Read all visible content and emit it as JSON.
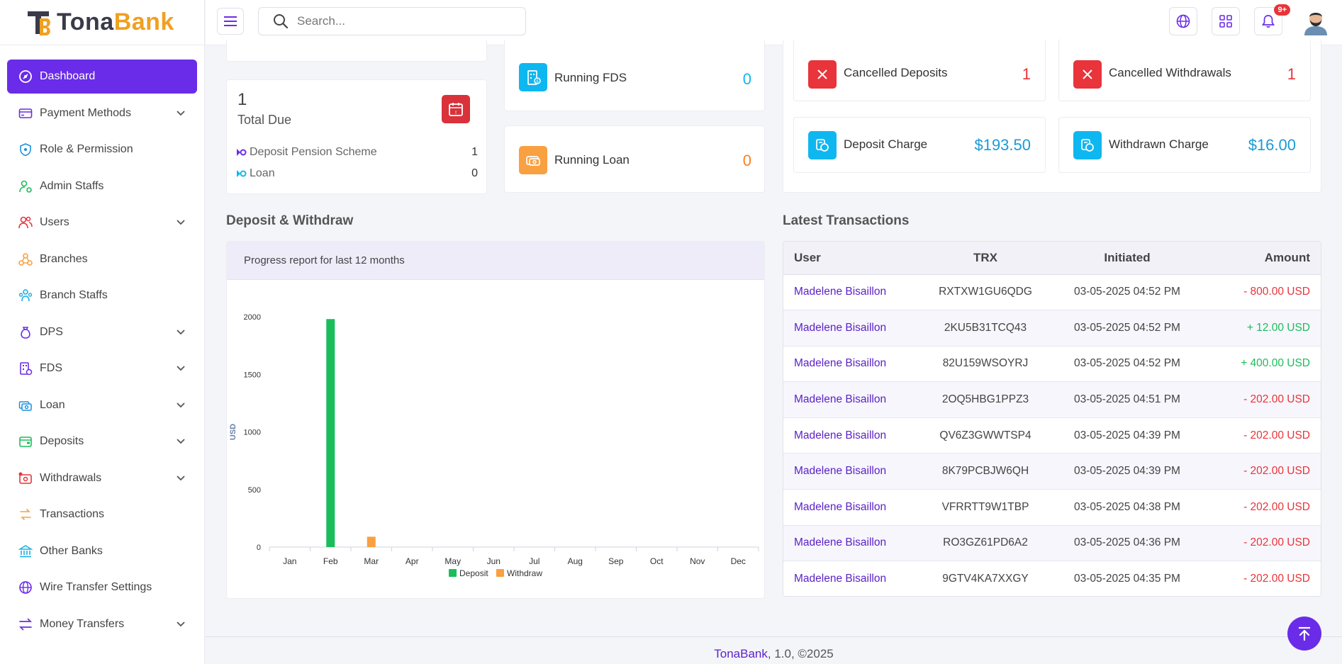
{
  "brand": {
    "name_part1": "Tona",
    "name_part2": "Bank"
  },
  "colors": {
    "primary": "#6a2ce8",
    "danger": "#e8343a",
    "info": "#0fb7f0",
    "warning": "#f9a040",
    "success": "#1bbd5b"
  },
  "search": {
    "placeholder": "Search..."
  },
  "notifications": {
    "count": "9+"
  },
  "sidebar": {
    "items": [
      {
        "label": "Dashboard",
        "icon": "dashboard-icon",
        "chevron": false
      },
      {
        "label": "Payment Methods",
        "icon": "credit-card-icon",
        "chevron": true
      },
      {
        "label": "Role & Permission",
        "icon": "shield-icon",
        "chevron": false
      },
      {
        "label": "Admin Staffs",
        "icon": "user-gear-icon",
        "chevron": false
      },
      {
        "label": "Users",
        "icon": "users-icon",
        "chevron": true
      },
      {
        "label": "Branches",
        "icon": "branches-icon",
        "chevron": false
      },
      {
        "label": "Branch Staffs",
        "icon": "staff-icon",
        "chevron": false
      },
      {
        "label": "DPS",
        "icon": "money-bag-icon",
        "chevron": true
      },
      {
        "label": "FDS",
        "icon": "building-icon",
        "chevron": true
      },
      {
        "label": "Loan",
        "icon": "loan-icon",
        "chevron": true
      },
      {
        "label": "Deposits",
        "icon": "deposit-icon",
        "chevron": true
      },
      {
        "label": "Withdrawals",
        "icon": "withdraw-icon",
        "chevron": true
      },
      {
        "label": "Transactions",
        "icon": "exchange-icon",
        "chevron": false
      },
      {
        "label": "Other Banks",
        "icon": "bank-icon",
        "chevron": false
      },
      {
        "label": "Wire Transfer Settings",
        "icon": "globe-icon",
        "chevron": false
      },
      {
        "label": "Money Transfers",
        "icon": "transfer-icon",
        "chevron": true
      }
    ]
  },
  "total_due": {
    "value": "1",
    "label": "Total Due",
    "rows": [
      {
        "label": "Deposit Pension Scheme",
        "value": "1"
      },
      {
        "label": "Loan",
        "value": "0"
      }
    ]
  },
  "running": [
    {
      "label": "Running FDS",
      "value": "0"
    },
    {
      "label": "Running Loan",
      "value": "0"
    }
  ],
  "stats": [
    {
      "label": "Cancelled Deposits",
      "value": "1"
    },
    {
      "label": "Cancelled Withdrawals",
      "value": "1"
    },
    {
      "label": "Deposit Charge",
      "value": "$193.50"
    },
    {
      "label": "Withdrawn Charge",
      "value": "$16.00"
    }
  ],
  "chart_section": {
    "title": "Deposit & Withdraw",
    "subtitle": "Progress report for last 12 months"
  },
  "chart_data": {
    "type": "bar",
    "categories": [
      "Jan",
      "Feb",
      "Mar",
      "Apr",
      "May",
      "Jun",
      "Jul",
      "Aug",
      "Sep",
      "Oct",
      "Nov",
      "Dec"
    ],
    "series": [
      {
        "name": "Deposit",
        "color": "#1bbd5b",
        "values": [
          0,
          1980,
          0,
          0,
          0,
          0,
          0,
          0,
          0,
          0,
          0,
          0
        ]
      },
      {
        "name": "Withdraw",
        "color": "#f9a040",
        "values": [
          0,
          0,
          90,
          0,
          0,
          0,
          0,
          0,
          0,
          0,
          0,
          0
        ]
      }
    ],
    "ylabel": "USD",
    "yticks": [
      0,
      500,
      1000,
      1500,
      2000
    ],
    "ylim": [
      0,
      2000
    ],
    "legend": "bottom"
  },
  "transactions": {
    "title": "Latest Transactions",
    "headers": {
      "user": "User",
      "trx": "TRX",
      "initiated": "Initiated",
      "amount": "Amount"
    },
    "rows": [
      {
        "user": "Madelene Bisaillon",
        "trx": "RXTXW1GU6QDG",
        "initiated": "03-05-2025 04:52 PM",
        "amount": "- 800.00 USD",
        "type": "debit"
      },
      {
        "user": "Madelene Bisaillon",
        "trx": "2KU5B31TCQ43",
        "initiated": "03-05-2025 04:52 PM",
        "amount": "+ 12.00 USD",
        "type": "credit"
      },
      {
        "user": "Madelene Bisaillon",
        "trx": "82U159WSOYRJ",
        "initiated": "03-05-2025 04:52 PM",
        "amount": "+ 400.00 USD",
        "type": "credit"
      },
      {
        "user": "Madelene Bisaillon",
        "trx": "2OQ5HBG1PPZ3",
        "initiated": "03-05-2025 04:51 PM",
        "amount": "- 202.00 USD",
        "type": "debit"
      },
      {
        "user": "Madelene Bisaillon",
        "trx": "QV6Z3GWWTSP4",
        "initiated": "03-05-2025 04:39 PM",
        "amount": "- 202.00 USD",
        "type": "debit"
      },
      {
        "user": "Madelene Bisaillon",
        "trx": "8K79PCBJW6QH",
        "initiated": "03-05-2025 04:39 PM",
        "amount": "- 202.00 USD",
        "type": "debit"
      },
      {
        "user": "Madelene Bisaillon",
        "trx": "VFRRTT9W1TBP",
        "initiated": "03-05-2025 04:38 PM",
        "amount": "- 202.00 USD",
        "type": "debit"
      },
      {
        "user": "Madelene Bisaillon",
        "trx": "RO3GZ61PD6A2",
        "initiated": "03-05-2025 04:36 PM",
        "amount": "- 202.00 USD",
        "type": "debit"
      },
      {
        "user": "Madelene Bisaillon",
        "trx": "9GTV4KA7XXGY",
        "initiated": "03-05-2025 04:35 PM",
        "amount": "- 202.00 USD",
        "type": "debit"
      }
    ]
  },
  "footer": {
    "brand": "TonaBank",
    "rest": ", 1.0, ©2025"
  }
}
